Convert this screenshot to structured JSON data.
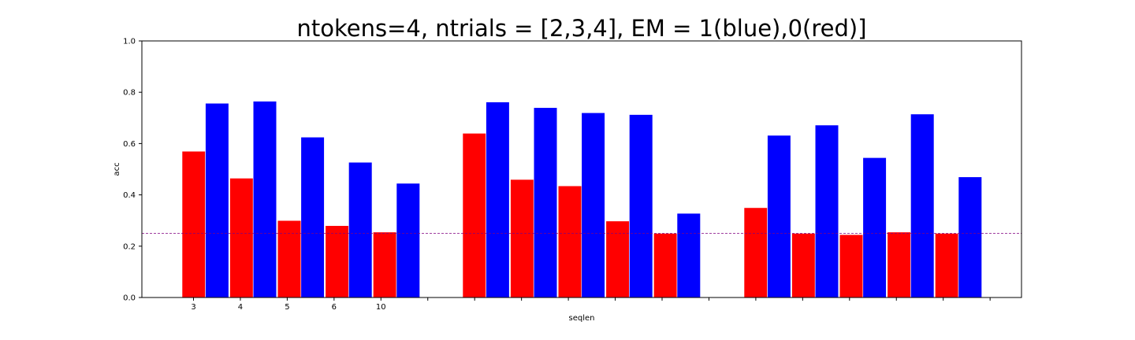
{
  "chart_data": {
    "type": "bar",
    "title": "ntokens=4, ntrials = [2,3,4], EM = 1(blue),0(red)]",
    "xlabel": "seqlen",
    "ylabel": "acc",
    "ylim": [
      0,
      1.0
    ],
    "yticks": [
      "0.0",
      "0.2",
      "0.4",
      "0.6",
      "0.8",
      "1.0"
    ],
    "xtick_labels": [
      "3",
      "4",
      "5",
      "6",
      "10"
    ],
    "reference_line": {
      "value": 0.25,
      "color": "#800080",
      "style": "dashed"
    },
    "colors": {
      "red": "#ff0000",
      "blue": "#0000ff"
    },
    "groups": [
      {
        "red": [
          0.57,
          0.465,
          0.3,
          0.28,
          0.255
        ],
        "blue": [
          0.757,
          0.765,
          0.625,
          0.527,
          0.445
        ]
      },
      {
        "red": [
          0.64,
          0.46,
          0.435,
          0.298,
          0.25
        ],
        "blue": [
          0.762,
          0.74,
          0.72,
          0.713,
          0.328
        ]
      },
      {
        "red": [
          0.35,
          0.25,
          0.245,
          0.255,
          0.25
        ],
        "blue": [
          0.632,
          0.672,
          0.545,
          0.715,
          0.47
        ]
      }
    ]
  }
}
